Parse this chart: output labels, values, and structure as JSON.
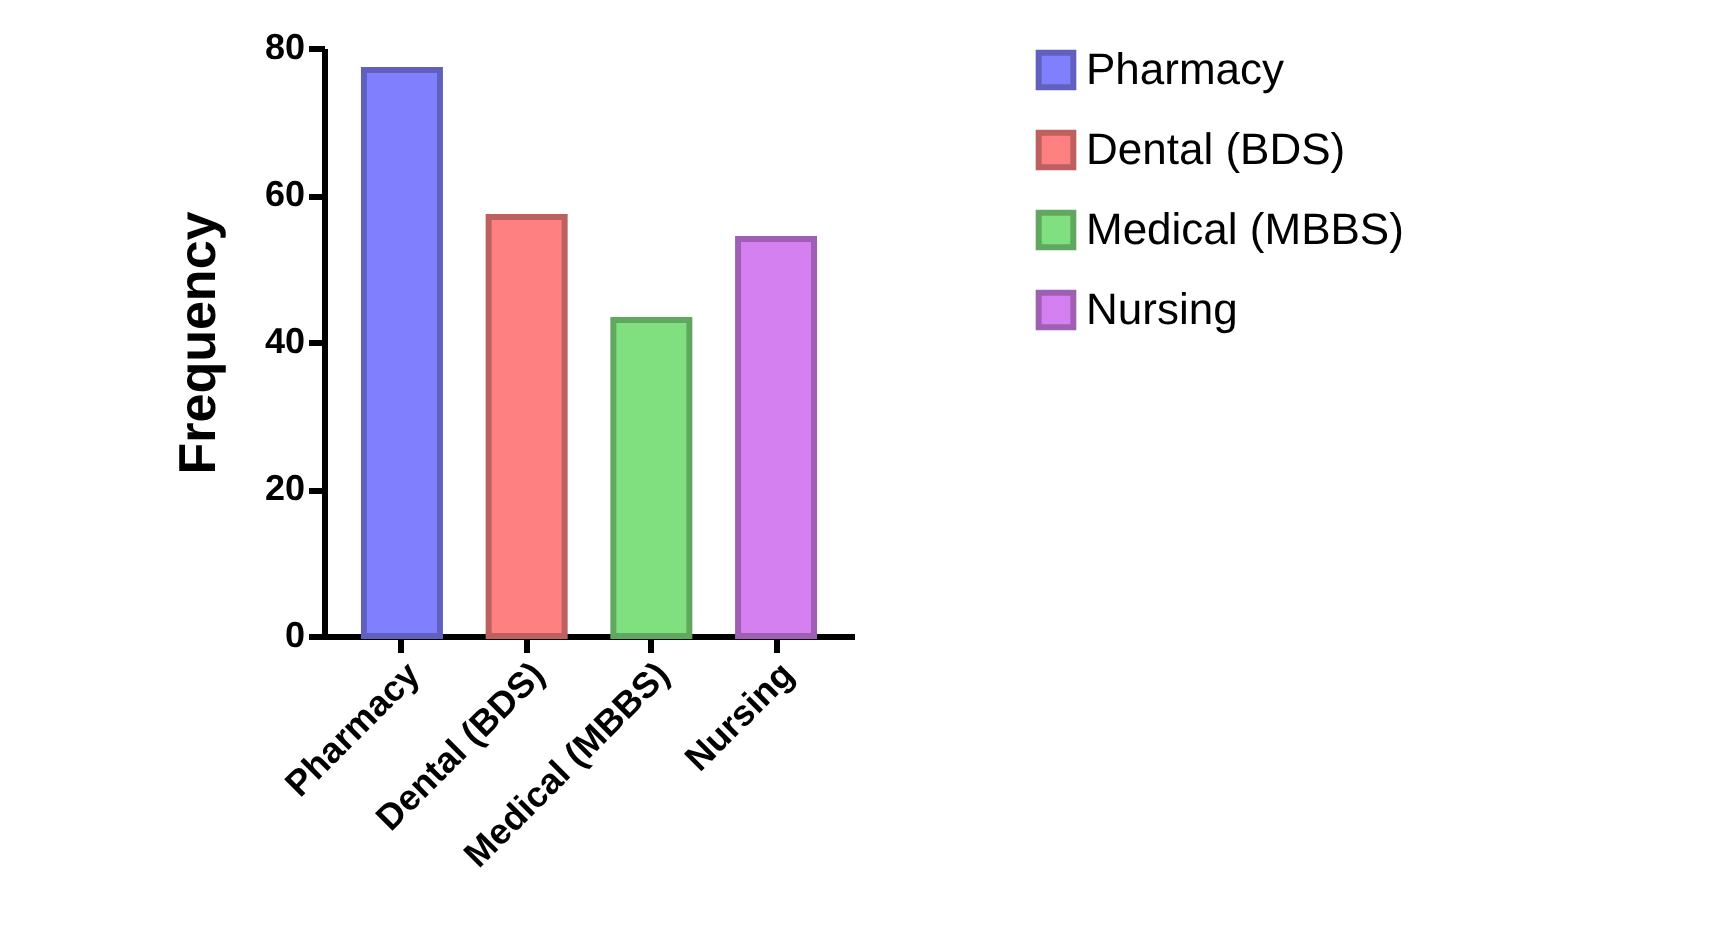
{
  "chart_data": {
    "type": "bar",
    "ylabel": "Frequency",
    "categories": [
      "Pharmacy",
      "Dental (BDS)",
      "Medical (MBBS)",
      "Nursing"
    ],
    "series": [
      {
        "name": "Pharmacy",
        "color": "#8080ff",
        "values": [
          77,
          null,
          null,
          null
        ]
      },
      {
        "name": "Dental (BDS)",
        "color": "#ff8080",
        "values": [
          null,
          57,
          null,
          null
        ]
      },
      {
        "name": "Medical (MBBS)",
        "color": "#80e080",
        "values": [
          null,
          null,
          43,
          null
        ]
      },
      {
        "name": "Nursing",
        "color": "#d580f0",
        "values": [
          null,
          null,
          null,
          54
        ]
      }
    ],
    "ylim": [
      0,
      80
    ],
    "yticks": [
      0,
      20,
      40,
      60,
      80
    ],
    "grid": false,
    "legend": "top right"
  }
}
